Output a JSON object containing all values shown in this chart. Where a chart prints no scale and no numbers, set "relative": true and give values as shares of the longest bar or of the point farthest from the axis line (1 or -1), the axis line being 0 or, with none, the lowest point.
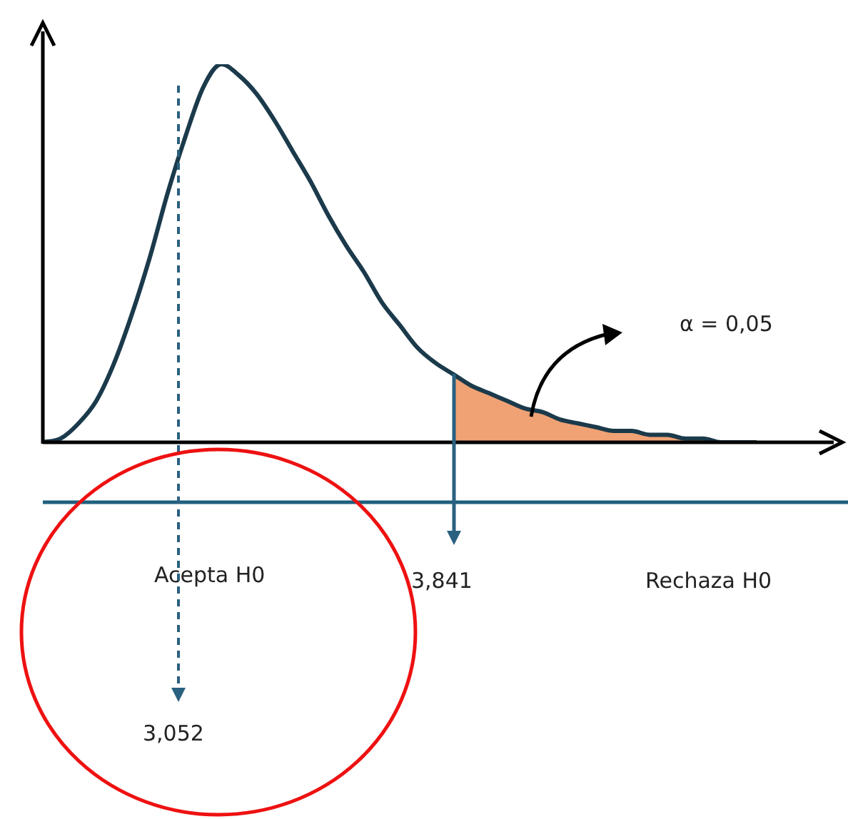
{
  "chart_data": {
    "type": "line",
    "relative": true,
    "categories": [
      null,
      null,
      null,
      null,
      null,
      null,
      null,
      null,
      null,
      null,
      null,
      null,
      null,
      null,
      null,
      null,
      null,
      null,
      null,
      null,
      null,
      null,
      null,
      null,
      null,
      null,
      null,
      null,
      null,
      null,
      null,
      null,
      null,
      null,
      null,
      null,
      null,
      null,
      null,
      null,
      null
    ],
    "series": [
      {
        "type": "line",
        "color": "#1b3a4b",
        "values": [
          0,
          0.01,
          0.05,
          0.11,
          0.21,
          0.34,
          0.49,
          0.66,
          0.81,
          0.94,
          1,
          0.97,
          0.92,
          0.85,
          0.77,
          0.69,
          0.6,
          0.52,
          0.45,
          0.37,
          0.31,
          0.25,
          0.21,
          0.18,
          0.15,
          0.13,
          0.11,
          0.09,
          0.08,
          0.06,
          0.05,
          0.04,
          0.03,
          0.03,
          0.02,
          0.02,
          0.01,
          0.01,
          0,
          0,
          0
        ]
      },
      {
        "type": "area",
        "color": "#f0a274",
        "values": [
          null,
          null,
          null,
          null,
          null,
          null,
          null,
          null,
          null,
          null,
          null,
          null,
          null,
          null,
          null,
          null,
          null,
          null,
          null,
          null,
          null,
          null,
          null,
          0.18,
          0.15,
          0.13,
          0.11,
          0.09,
          0.08,
          0.06,
          0.05,
          0.04,
          0.03,
          0.03,
          0.02,
          0.02,
          0.01,
          0.01,
          0,
          0,
          0
        ]
      }
    ],
    "annotations": [
      "α = 0,05",
      "3,841",
      "Acepta H0",
      "Rechaza H0",
      "3,052"
    ]
  }
}
